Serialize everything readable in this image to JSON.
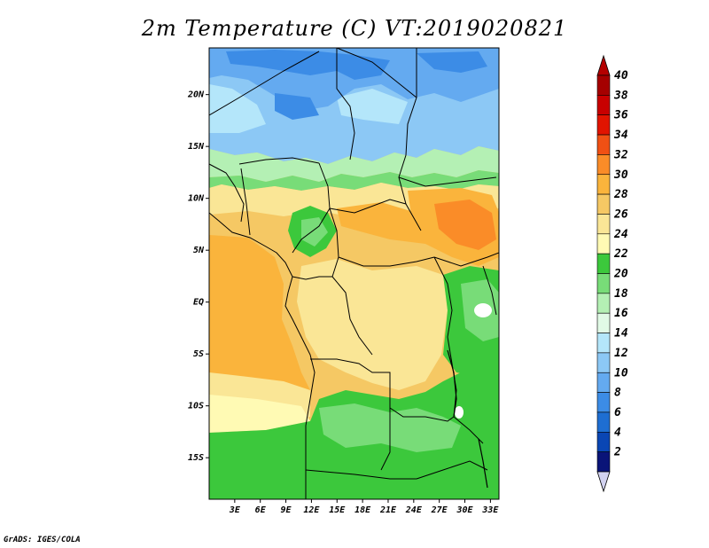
{
  "title": "2m Temperature (C) VT:2019020821",
  "footer": "GrADS: IGES/COLA",
  "map": {
    "lon_range": [
      0,
      34
    ],
    "lat_range": [
      -19,
      24.5
    ],
    "lon_ticks": [
      {
        "value": 3,
        "label": "3E"
      },
      {
        "value": 6,
        "label": "6E"
      },
      {
        "value": 9,
        "label": "9E"
      },
      {
        "value": 12,
        "label": "12E"
      },
      {
        "value": 15,
        "label": "15E"
      },
      {
        "value": 18,
        "label": "18E"
      },
      {
        "value": 21,
        "label": "21E"
      },
      {
        "value": 24,
        "label": "24E"
      },
      {
        "value": 27,
        "label": "27E"
      },
      {
        "value": 30,
        "label": "30E"
      },
      {
        "value": 33,
        "label": "33E"
      }
    ],
    "lat_ticks": [
      {
        "value": 20,
        "label": "20N"
      },
      {
        "value": 15,
        "label": "15N"
      },
      {
        "value": 10,
        "label": "10N"
      },
      {
        "value": 5,
        "label": "5N"
      },
      {
        "value": 0,
        "label": "EQ"
      },
      {
        "value": -5,
        "label": "5S"
      },
      {
        "value": -10,
        "label": "10S"
      },
      {
        "value": -15,
        "label": "15S"
      }
    ]
  },
  "colorbar": {
    "levels": [
      "40",
      "38",
      "36",
      "34",
      "32",
      "30",
      "28",
      "26",
      "24",
      "22",
      "20",
      "18",
      "16",
      "14",
      "12",
      "10",
      "8",
      "6",
      "4",
      "2"
    ],
    "colors": [
      "#a50000",
      "#c80000",
      "#e11400",
      "#f05014",
      "#fa8c28",
      "#fab43c",
      "#f5c864",
      "#fae696",
      "#fffab4",
      "#3cc83c",
      "#78dc78",
      "#b4f0b4",
      "#e1fae6",
      "#b4e6fa",
      "#8cc8f5",
      "#64aaf0",
      "#3c8ce6",
      "#1e6ed2",
      "#0a46b4",
      "#0a1478"
    ],
    "top_color": "#b40000",
    "bottom_color": "#d2d2f0"
  },
  "zones": {
    "blue_deep": "#3c8ce6",
    "blue": "#64aaf0",
    "blue_light": "#8cc8f5",
    "cyan": "#b4e6fa",
    "green_pale": "#b4f0b4",
    "green_mid": "#78dc78",
    "green": "#3cc83c",
    "yellow": "#fffab4",
    "cream": "#fae696",
    "tan": "#f5c864",
    "orange": "#fab43c",
    "orange_deep": "#fa8c28",
    "lake": "#ffffff"
  }
}
